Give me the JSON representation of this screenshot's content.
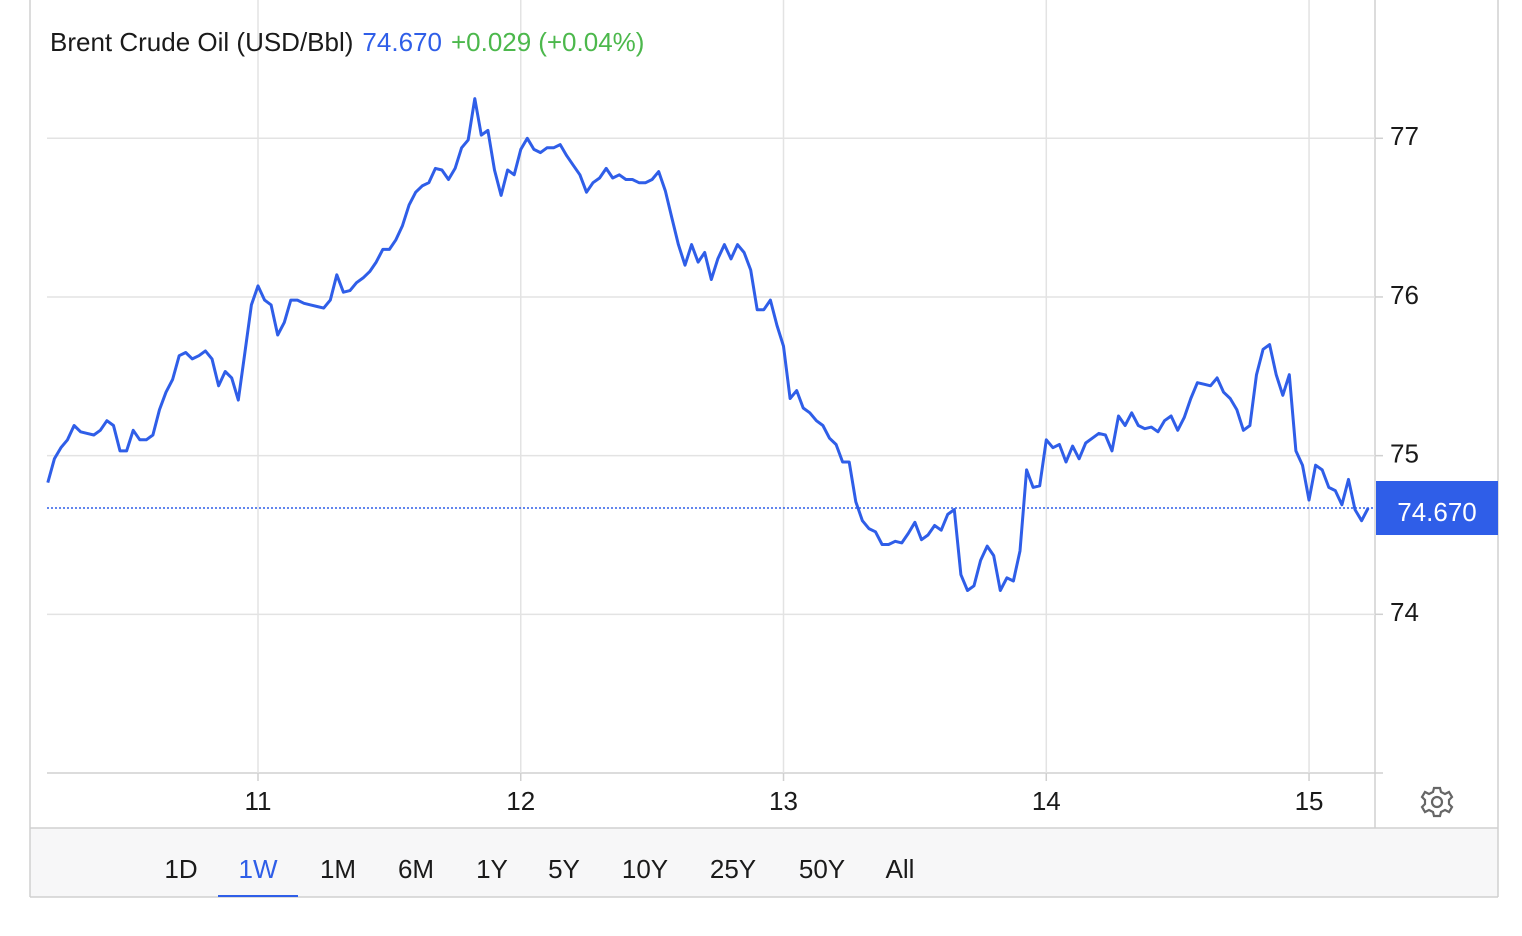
{
  "chart_data": {
    "type": "line",
    "title": "Brent Crude Oil (USD/Bbl)",
    "last_price": {
      "value": 74.67,
      "label": "74.670"
    },
    "change": "+0.029",
    "change_percent": "(+0.04%)",
    "color": "#2f5ee8",
    "change_color": "#4cb84c",
    "grid": true,
    "xlim": [
      10.197,
      15.251
    ],
    "ylim": [
      73,
      77.84
    ],
    "xticks": [
      11,
      12,
      13,
      14,
      15
    ],
    "yticks": [
      74,
      75,
      76,
      77
    ],
    "x": [
      10.2,
      10.225,
      10.25,
      10.275,
      10.3,
      10.325,
      10.35,
      10.375,
      10.4,
      10.425,
      10.45,
      10.475,
      10.5,
      10.525,
      10.55,
      10.575,
      10.6,
      10.625,
      10.65,
      10.675,
      10.7,
      10.725,
      10.75,
      10.775,
      10.8,
      10.825,
      10.85,
      10.875,
      10.9,
      10.925,
      10.95,
      10.975,
      11,
      11.025,
      11.05,
      11.075,
      11.1,
      11.125,
      11.15,
      11.175,
      11.2,
      11.225,
      11.25,
      11.275,
      11.3,
      11.325,
      11.35,
      11.375,
      11.4,
      11.425,
      11.45,
      11.475,
      11.5,
      11.525,
      11.55,
      11.575,
      11.6,
      11.625,
      11.65,
      11.675,
      11.7,
      11.725,
      11.75,
      11.775,
      11.8,
      11.825,
      11.85,
      11.875,
      11.9,
      11.925,
      11.95,
      11.975,
      12,
      12.025,
      12.05,
      12.075,
      12.1,
      12.125,
      12.15,
      12.175,
      12.2,
      12.225,
      12.25,
      12.275,
      12.3,
      12.325,
      12.35,
      12.375,
      12.4,
      12.425,
      12.45,
      12.475,
      12.5,
      12.525,
      12.55,
      12.575,
      12.6,
      12.625,
      12.65,
      12.675,
      12.7,
      12.725,
      12.75,
      12.775,
      12.8,
      12.825,
      12.85,
      12.875,
      12.9,
      12.925,
      12.95,
      12.975,
      13,
      13.025,
      13.05,
      13.075,
      13.1,
      13.125,
      13.15,
      13.175,
      13.2,
      13.225,
      13.25,
      13.275,
      13.3,
      13.325,
      13.35,
      13.375,
      13.4,
      13.425,
      13.45,
      13.475,
      13.5,
      13.525,
      13.55,
      13.575,
      13.6,
      13.625,
      13.65,
      13.675,
      13.7,
      13.725,
      13.75,
      13.775,
      13.8,
      13.825,
      13.85,
      13.875,
      13.9,
      13.925,
      13.95,
      13.975,
      14,
      14.025,
      14.05,
      14.075,
      14.1,
      14.125,
      14.15,
      14.175,
      14.2,
      14.225,
      14.25,
      14.275,
      14.3,
      14.325,
      14.35,
      14.375,
      14.4,
      14.425,
      14.45,
      14.475,
      14.5,
      14.525,
      14.55,
      14.575,
      14.6,
      14.625,
      14.65,
      14.675,
      14.7,
      14.725,
      14.75,
      14.775,
      14.8,
      14.825,
      14.85,
      14.875,
      14.9,
      14.925,
      14.95,
      14.975,
      15,
      15.025,
      15.05,
      15.075,
      15.1,
      15.125,
      15.15,
      15.175,
      15.2,
      15.225
    ],
    "values": [
      74.83,
      74.98,
      75.05,
      75.1,
      75.19,
      75.15,
      75.14,
      75.13,
      75.16,
      75.22,
      75.19,
      75.03,
      75.03,
      75.16,
      75.1,
      75.1,
      75.13,
      75.29,
      75.4,
      75.48,
      75.63,
      75.65,
      75.61,
      75.63,
      75.66,
      75.61,
      75.44,
      75.53,
      75.49,
      75.35,
      75.65,
      75.95,
      76.07,
      75.98,
      75.95,
      75.76,
      75.84,
      75.98,
      75.98,
      75.96,
      75.95,
      75.94,
      75.93,
      75.98,
      76.14,
      76.03,
      76.04,
      76.09,
      76.12,
      76.16,
      76.22,
      76.3,
      76.3,
      76.36,
      76.45,
      76.58,
      76.66,
      76.7,
      76.72,
      76.81,
      76.8,
      76.74,
      76.81,
      76.94,
      76.99,
      77.25,
      77.02,
      77.05,
      76.8,
      76.64,
      76.8,
      76.77,
      76.93,
      77.0,
      76.93,
      76.91,
      76.94,
      76.94,
      76.96,
      76.89,
      76.83,
      76.77,
      76.66,
      76.72,
      76.75,
      76.81,
      76.75,
      76.77,
      76.74,
      76.74,
      76.72,
      76.72,
      76.74,
      76.79,
      76.67,
      76.5,
      76.33,
      76.2,
      76.33,
      76.22,
      76.28,
      76.11,
      76.24,
      76.33,
      76.24,
      76.33,
      76.28,
      76.17,
      75.92,
      75.92,
      75.98,
      75.82,
      75.69,
      75.36,
      75.41,
      75.3,
      75.27,
      75.22,
      75.19,
      75.11,
      75.07,
      74.96,
      74.96,
      74.71,
      74.59,
      74.54,
      74.52,
      74.44,
      74.44,
      74.46,
      74.45,
      74.51,
      74.58,
      74.47,
      74.5,
      74.56,
      74.53,
      74.63,
      74.66,
      74.25,
      74.15,
      74.18,
      74.34,
      74.43,
      74.37,
      74.15,
      74.23,
      74.21,
      74.4,
      74.91,
      74.8,
      74.81,
      75.1,
      75.05,
      75.07,
      74.96,
      75.06,
      74.98,
      75.08,
      75.11,
      75.14,
      75.13,
      75.03,
      75.25,
      75.19,
      75.27,
      75.19,
      75.17,
      75.18,
      75.15,
      75.22,
      75.25,
      75.16,
      75.24,
      75.36,
      75.46,
      75.45,
      75.44,
      75.49,
      75.4,
      75.36,
      75.29,
      75.16,
      75.19,
      75.51,
      75.67,
      75.7,
      75.51,
      75.38,
      75.51,
      75.03,
      74.94,
      74.72,
      74.94,
      74.91,
      74.8,
      74.78,
      74.69,
      74.85,
      74.66,
      74.59,
      74.67
    ]
  },
  "range_selector": {
    "options": [
      "1D",
      "1W",
      "1M",
      "6M",
      "1Y",
      "5Y",
      "10Y",
      "25Y",
      "50Y",
      "All"
    ],
    "selected": "1W"
  }
}
